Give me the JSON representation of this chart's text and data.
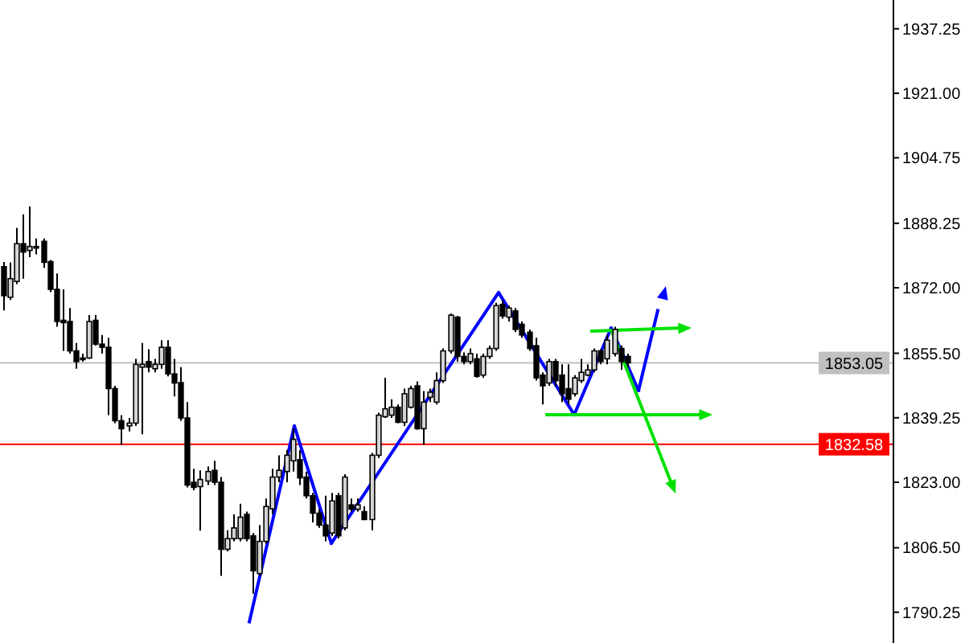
{
  "chart_data": {
    "type": "candlestick",
    "categories": [
      null,
      null,
      null,
      null,
      null,
      null,
      null,
      null,
      null,
      null,
      null,
      null,
      null,
      null,
      null,
      null,
      null,
      null,
      null,
      null,
      null,
      null,
      null,
      null,
      null,
      null,
      null,
      null,
      null,
      null,
      null,
      null,
      null,
      null,
      null,
      null,
      null,
      null,
      null,
      null,
      null,
      null,
      null,
      null,
      null,
      null,
      null,
      null,
      null,
      null,
      null,
      null,
      null,
      null,
      null,
      null,
      null,
      null,
      null,
      null,
      null,
      null,
      null,
      null,
      null,
      null,
      null,
      null,
      null,
      null,
      null,
      null,
      null,
      null,
      null,
      null,
      null,
      null,
      null,
      null,
      null,
      null,
      null,
      null,
      null,
      null,
      null,
      null,
      null,
      null,
      null,
      null,
      null,
      null,
      null,
      null,
      null,
      null,
      null,
      null,
      null,
      null,
      null,
      null,
      null,
      null,
      null,
      null,
      null,
      null,
      null,
      null,
      null,
      null,
      null,
      null,
      null,
      null,
      null,
      null,
      null,
      null,
      null,
      null,
      null,
      null,
      null,
      null,
      null,
      null,
      null,
      null,
      null,
      null,
      null,
      null
    ],
    "ohlc": [
      [
        1877.3,
        1878.5,
        1866.3,
        1870.0
      ],
      [
        1869.6,
        1878.4,
        1868.9,
        1874.3
      ],
      [
        1873.6,
        1887.1,
        1872.9,
        1883.1
      ],
      [
        1883.1,
        1890.5,
        1874.3,
        1881.0
      ],
      [
        1881.4,
        1892.5,
        1879.7,
        1882.4
      ],
      [
        1882.4,
        1884.4,
        1880.4,
        1882.0
      ],
      [
        1883.7,
        1884.4,
        1877.0,
        1878.4
      ],
      [
        1878.6,
        1879.0,
        1870.9,
        1871.6
      ],
      [
        1871.6,
        1875.6,
        1862.2,
        1863.5
      ],
      [
        1863.8,
        1871.6,
        1856.1,
        1863.2
      ],
      [
        1863.5,
        1866.9,
        1855.4,
        1856.1
      ],
      [
        1856.1,
        1858.1,
        1851.6,
        1853.4
      ],
      [
        1854.3,
        1855.4,
        1853.4,
        1854.0
      ],
      [
        1854.3,
        1865.1,
        1854.1,
        1863.5
      ],
      [
        1863.8,
        1865.1,
        1857.4,
        1857.8
      ],
      [
        1857.8,
        1860.1,
        1855.4,
        1857.0
      ],
      [
        1857.0,
        1859.4,
        1839.9,
        1846.6
      ],
      [
        1846.6,
        1847.3,
        1837.9,
        1838.5
      ],
      [
        1838.5,
        1839.9,
        1832.4,
        1836.5
      ],
      [
        1837.2,
        1839.2,
        1835.8,
        1837.9
      ],
      [
        1837.9,
        1854.1,
        1837.2,
        1852.7
      ],
      [
        1852.0,
        1858.1,
        1835.1,
        1852.7
      ],
      [
        1853.4,
        1856.5,
        1850.7,
        1852.0
      ],
      [
        1851.6,
        1854.1,
        1850.7,
        1852.7
      ],
      [
        1852.7,
        1858.8,
        1851.6,
        1857.0
      ],
      [
        1857.0,
        1858.8,
        1849.7,
        1850.3
      ],
      [
        1850.3,
        1854.1,
        1844.6,
        1848.0
      ],
      [
        1848.1,
        1852.0,
        1838.5,
        1839.2
      ],
      [
        1839.2,
        1843.2,
        1821.7,
        1822.3
      ],
      [
        1823.0,
        1826.4,
        1821.0,
        1821.7
      ],
      [
        1821.9,
        1826.0,
        1810.8,
        1823.7
      ],
      [
        1823.3,
        1827.0,
        1822.3,
        1825.7
      ],
      [
        1826.0,
        1828.4,
        1822.3,
        1823.0
      ],
      [
        1823.0,
        1824.3,
        1799.4,
        1806.1
      ],
      [
        1806.1,
        1810.9,
        1805.6,
        1808.8
      ],
      [
        1808.8,
        1814.9,
        1808.1,
        1811.5
      ],
      [
        1808.8,
        1817.6,
        1808.1,
        1814.2
      ],
      [
        1814.9,
        1815.6,
        1808.1,
        1808.8
      ],
      [
        1809.5,
        1810.2,
        1794.9,
        1800.7
      ],
      [
        1800.0,
        1812.2,
        1799.4,
        1808.1
      ],
      [
        1808.1,
        1818.9,
        1807.5,
        1816.9
      ],
      [
        1816.3,
        1826.4,
        1814.9,
        1824.3
      ],
      [
        1824.3,
        1829.8,
        1823.0,
        1826.0
      ],
      [
        1825.7,
        1831.1,
        1823.0,
        1829.8
      ],
      [
        1828.4,
        1836.5,
        1825.7,
        1833.8
      ],
      [
        1828.7,
        1831.1,
        1822.3,
        1824.1
      ],
      [
        1824.3,
        1825.7,
        1818.9,
        1819.6
      ],
      [
        1819.6,
        1820.3,
        1812.9,
        1815.2
      ],
      [
        1815.2,
        1816.2,
        1811.5,
        1812.2
      ],
      [
        1812.2,
        1819.6,
        1808.1,
        1809.5
      ],
      [
        1810.2,
        1820.3,
        1809.5,
        1818.3
      ],
      [
        1819.6,
        1820.3,
        1808.8,
        1809.5
      ],
      [
        1811.5,
        1825.0,
        1810.9,
        1824.3
      ],
      [
        1817.3,
        1818.9,
        1815.6,
        1816.2
      ],
      [
        1816.2,
        1818.9,
        1815.6,
        1817.3
      ],
      [
        1815.6,
        1817.0,
        1813.6,
        1813.6
      ],
      [
        1813.6,
        1830.4,
        1810.9,
        1829.8
      ],
      [
        1829.8,
        1840.5,
        1829.1,
        1839.9
      ],
      [
        1839.5,
        1849.3,
        1839.2,
        1841.5
      ],
      [
        1839.9,
        1843.9,
        1839.2,
        1841.9
      ],
      [
        1841.9,
        1842.6,
        1837.9,
        1838.1
      ],
      [
        1838.1,
        1846.6,
        1837.2,
        1845.3
      ],
      [
        1841.9,
        1847.3,
        1841.6,
        1846.6
      ],
      [
        1847.3,
        1848.4,
        1836.2,
        1836.5
      ],
      [
        1836.5,
        1846.0,
        1832.4,
        1843.2
      ],
      [
        1844.4,
        1846.6,
        1843.2,
        1845.7
      ],
      [
        1843.2,
        1850.7,
        1842.6,
        1848.6
      ],
      [
        1848.6,
        1856.7,
        1848.0,
        1856.1
      ],
      [
        1856.1,
        1865.5,
        1855.4,
        1865.1
      ],
      [
        1864.6,
        1864.9,
        1853.4,
        1854.7
      ],
      [
        1854.7,
        1855.7,
        1852.7,
        1853.4
      ],
      [
        1853.4,
        1856.7,
        1852.7,
        1855.4
      ],
      [
        1854.1,
        1855.4,
        1849.3,
        1849.7
      ],
      [
        1850.0,
        1855.4,
        1849.3,
        1854.7
      ],
      [
        1854.7,
        1857.4,
        1854.1,
        1856.7
      ],
      [
        1856.7,
        1868.2,
        1856.1,
        1867.5
      ],
      [
        1867.8,
        1868.9,
        1864.2,
        1864.9
      ],
      [
        1864.6,
        1867.5,
        1863.5,
        1866.9
      ],
      [
        1866.2,
        1866.9,
        1860.8,
        1861.5
      ],
      [
        1862.8,
        1863.5,
        1859.4,
        1860.1
      ],
      [
        1860.8,
        1861.5,
        1856.1,
        1856.7
      ],
      [
        1857.4,
        1859.4,
        1848.6,
        1849.3
      ],
      [
        1850.0,
        1850.7,
        1842.6,
        1847.3
      ],
      [
        1848.0,
        1854.1,
        1847.3,
        1853.4
      ],
      [
        1853.4,
        1854.1,
        1847.3,
        1848.6
      ],
      [
        1850.0,
        1852.7,
        1843.2,
        1845.3
      ],
      [
        1846.6,
        1852.7,
        1842.6,
        1843.9
      ],
      [
        1845.3,
        1850.0,
        1844.6,
        1849.3
      ],
      [
        1848.6,
        1854.1,
        1848.0,
        1850.7
      ],
      [
        1850.0,
        1852.7,
        1849.7,
        1851.3
      ],
      [
        1851.3,
        1856.7,
        1850.7,
        1856.1
      ],
      [
        1856.1,
        1856.5,
        1852.7,
        1853.4
      ],
      [
        1854.1,
        1860.1,
        1852.7,
        1858.8
      ],
      [
        1855.4,
        1862.2,
        1854.7,
        1861.5
      ],
      [
        1856.7,
        1857.4,
        1851.3,
        1853.4
      ],
      [
        1854.7,
        1855.4,
        1852.0,
        1853.1
      ],
      null,
      null,
      null,
      null,
      null,
      null,
      null,
      null,
      null,
      null,
      null,
      null,
      null,
      null,
      null,
      null,
      null,
      null,
      null,
      null,
      null,
      null,
      null,
      null,
      null,
      null,
      null,
      null,
      null,
      null,
      null,
      null,
      null,
      null,
      null,
      null,
      null,
      null,
      null,
      null
    ],
    "ylim": [
      1782.5,
      1944.5
    ],
    "yticks": [
      {
        "value": 1937.25,
        "label": "1937.25"
      },
      {
        "value": 1921,
        "label": "1921.00"
      },
      {
        "value": 1904.75,
        "label": "1904.75"
      },
      {
        "value": 1888.25,
        "label": "1888.25"
      },
      {
        "value": 1872,
        "label": "1872.00"
      },
      {
        "value": 1855.5,
        "label": "1855.50"
      },
      {
        "value": 1839.25,
        "label": "1839.25"
      },
      {
        "value": 1823,
        "label": "1823.00"
      },
      {
        "value": 1806.5,
        "label": "1806.50"
      },
      {
        "value": 1790.25,
        "label": "1790.25"
      }
    ],
    "tick_labels": "y",
    "ref_lines": [
      {
        "axis": "y",
        "value": 1853.05,
        "label": "1853.05",
        "color": "#c0c0c0"
      },
      {
        "axis": "y",
        "value": 1832.58,
        "label": "1832.58",
        "color": "#ff0000"
      }
    ]
  }
}
